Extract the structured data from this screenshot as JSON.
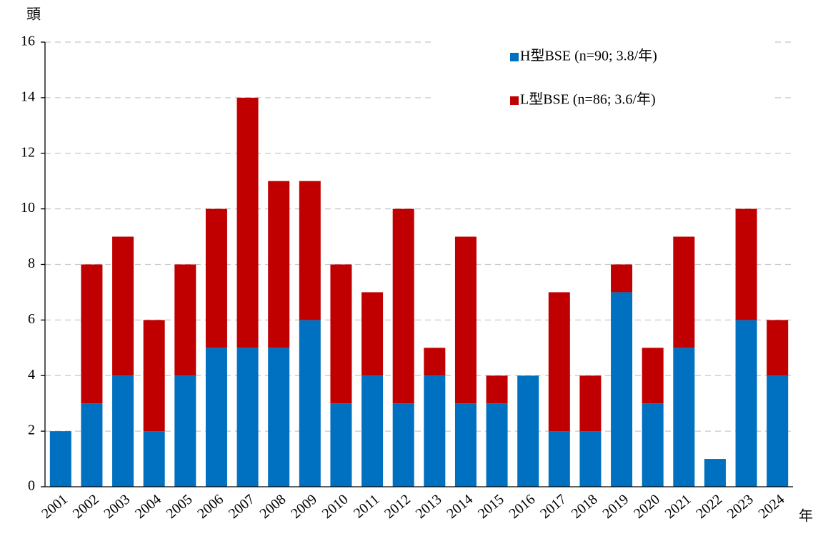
{
  "chart_data": {
    "type": "stacked_bar",
    "y_label": "頭",
    "x_label": "年",
    "categories": [
      "2001",
      "2002",
      "2003",
      "2004",
      "2005",
      "2006",
      "2007",
      "2008",
      "2009",
      "2010",
      "2011",
      "2012",
      "2013",
      "2014",
      "2015",
      "2016",
      "2017",
      "2018",
      "2019",
      "2020",
      "2021",
      "2022",
      "2023",
      "2024"
    ],
    "series": [
      {
        "name": "H型BSE (n=90; 3.8/年)",
        "color": "#0070c0",
        "values": [
          2,
          3,
          4,
          2,
          4,
          5,
          5,
          5,
          6,
          3,
          4,
          3,
          4,
          3,
          3,
          4,
          2,
          2,
          7,
          3,
          5,
          1,
          6,
          4
        ]
      },
      {
        "name": "L型BSE (n=86; 3.6/年)",
        "color": "#c00000",
        "values": [
          0,
          5,
          5,
          4,
          4,
          5,
          9,
          6,
          5,
          5,
          3,
          7,
          1,
          6,
          1,
          0,
          5,
          2,
          1,
          2,
          4,
          0,
          4,
          2
        ]
      }
    ],
    "ylim": [
      0,
      16
    ],
    "yticks": [
      0,
      2,
      4,
      6,
      8,
      10,
      12,
      14,
      16
    ],
    "grid": true,
    "legend": "top-right"
  }
}
